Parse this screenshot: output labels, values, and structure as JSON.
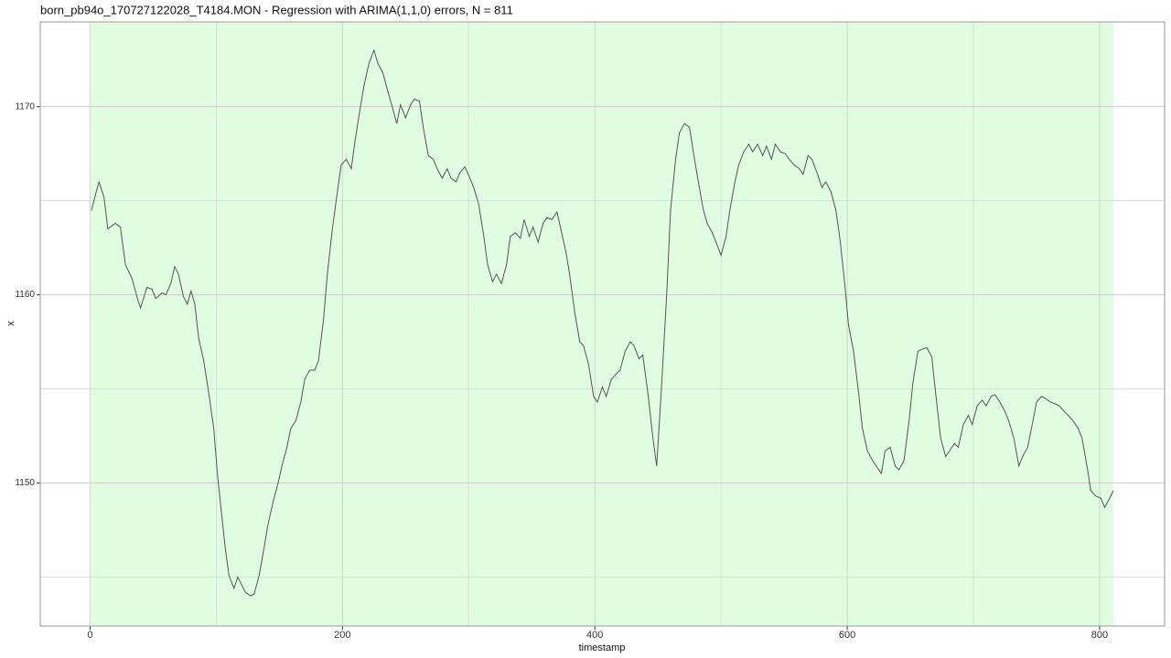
{
  "chart_data": {
    "type": "line",
    "title": "born_pb94o_170727122028_T4184.MON - Regression with ARIMA(1,1,0) errors, N = 811",
    "x_label": "timestamp",
    "y_label": "x",
    "xlim": [
      -39.5,
      851.5
    ],
    "ylim": [
      1142.4,
      1174.5
    ],
    "xticks": [
      0,
      200,
      400,
      600,
      800
    ],
    "yticks": [
      1150,
      1160,
      1170
    ],
    "x_minor_grid": [
      100,
      300,
      500,
      700
    ],
    "y_minor_grid": [
      1145,
      1155,
      1165
    ],
    "grid": true,
    "shaded_region": {
      "xmin": 1,
      "xmax": 811,
      "color": "#e1fde1"
    },
    "color": "#555555",
    "x": [
      1,
      7,
      11,
      14,
      20,
      24,
      28,
      33,
      38,
      40,
      45,
      49,
      52,
      57,
      60,
      64,
      67,
      70,
      74,
      77,
      80,
      83,
      86,
      90,
      94,
      98,
      101,
      104,
      107,
      110,
      114,
      117,
      120,
      123,
      127,
      130,
      134,
      138,
      141,
      145,
      149,
      152,
      156,
      159,
      163,
      167,
      170,
      174,
      178,
      181,
      185,
      188,
      192,
      196,
      199,
      203,
      207,
      210,
      214,
      217,
      221,
      225,
      228,
      232,
      236,
      239,
      243,
      246,
      250,
      254,
      257,
      261,
      264,
      268,
      272,
      275,
      279,
      283,
      286,
      290,
      293,
      297,
      301,
      304,
      308,
      312,
      315,
      319,
      322,
      326,
      330,
      333,
      337,
      341,
      344,
      348,
      351,
      355,
      359,
      362,
      366,
      370,
      373,
      377,
      380,
      384,
      388,
      391,
      395,
      399,
      402,
      406,
      409,
      413,
      417,
      420,
      424,
      428,
      431,
      435,
      438,
      442,
      446,
      449,
      453,
      457,
      460,
      464,
      467,
      471,
      475,
      478,
      482,
      486,
      489,
      493,
      496,
      500,
      504,
      507,
      511,
      514,
      518,
      522,
      525,
      529,
      533,
      536,
      540,
      543,
      547,
      551,
      554,
      558,
      562,
      565,
      569,
      572,
      576,
      580,
      583,
      587,
      591,
      594,
      598,
      601,
      605,
      609,
      612,
      616,
      620,
      623,
      627,
      630,
      634,
      638,
      641,
      645,
      649,
      652,
      656,
      659,
      663,
      667,
      670,
      674,
      678,
      681,
      685,
      688,
      692,
      696,
      699,
      703,
      707,
      710,
      714,
      717,
      721,
      725,
      728,
      732,
      736,
      739,
      743,
      746,
      750,
      754,
      757,
      761,
      765,
      768,
      772,
      775,
      779,
      783,
      786,
      790,
      793,
      797,
      801,
      804,
      808,
      811
    ],
    "values": [
      1164.47,
      1166.0,
      1165.2,
      1163.5,
      1163.8,
      1163.6,
      1161.6,
      1160.9,
      1159.7,
      1159.3,
      1160.4,
      1160.3,
      1159.8,
      1160.1,
      1160.0,
      1160.6,
      1161.5,
      1161.1,
      1159.9,
      1159.5,
      1160.2,
      1159.5,
      1157.7,
      1156.5,
      1154.8,
      1152.9,
      1150.4,
      1148.5,
      1146.6,
      1145.1,
      1144.4,
      1145.0,
      1144.6,
      1144.2,
      1144.0,
      1144.1,
      1145.1,
      1146.6,
      1147.8,
      1149.0,
      1150.0,
      1150.9,
      1151.9,
      1152.9,
      1153.3,
      1154.3,
      1155.5,
      1156.0,
      1156.0,
      1156.5,
      1158.7,
      1161.1,
      1163.5,
      1165.5,
      1166.9,
      1167.2,
      1166.7,
      1168.2,
      1169.9,
      1171.1,
      1172.3,
      1173.0,
      1172.3,
      1171.8,
      1170.8,
      1170.1,
      1169.1,
      1170.1,
      1169.4,
      1170.1,
      1170.4,
      1170.3,
      1168.9,
      1167.4,
      1167.2,
      1166.7,
      1166.2,
      1166.7,
      1166.2,
      1166.0,
      1166.5,
      1166.8,
      1166.2,
      1165.7,
      1164.8,
      1163.1,
      1161.6,
      1160.7,
      1161.1,
      1160.6,
      1161.6,
      1163.1,
      1163.3,
      1163.0,
      1164.0,
      1163.1,
      1163.6,
      1162.8,
      1163.8,
      1164.1,
      1164.0,
      1164.4,
      1163.5,
      1162.3,
      1161.1,
      1159.1,
      1157.5,
      1157.3,
      1156.3,
      1154.6,
      1154.3,
      1155.1,
      1154.6,
      1155.5,
      1155.8,
      1156.0,
      1157.0,
      1157.5,
      1157.3,
      1156.6,
      1156.8,
      1154.8,
      1152.4,
      1150.9,
      1155.3,
      1160.1,
      1164.5,
      1167.2,
      1168.6,
      1169.1,
      1168.9,
      1167.6,
      1166.0,
      1164.5,
      1163.8,
      1163.3,
      1162.8,
      1162.1,
      1163.1,
      1164.5,
      1166.0,
      1166.9,
      1167.6,
      1168.0,
      1167.6,
      1168.0,
      1167.4,
      1167.9,
      1167.2,
      1168.0,
      1167.6,
      1167.5,
      1167.2,
      1166.9,
      1166.7,
      1166.4,
      1167.4,
      1167.2,
      1166.5,
      1165.7,
      1166.0,
      1165.5,
      1164.5,
      1163.1,
      1160.6,
      1158.4,
      1157.0,
      1154.8,
      1152.9,
      1151.7,
      1151.2,
      1150.9,
      1150.5,
      1151.7,
      1151.9,
      1150.9,
      1150.7,
      1151.2,
      1153.3,
      1155.3,
      1157.0,
      1157.1,
      1157.2,
      1156.7,
      1154.8,
      1152.4,
      1151.4,
      1151.7,
      1152.1,
      1151.9,
      1153.1,
      1153.6,
      1153.1,
      1154.1,
      1154.4,
      1154.1,
      1154.6,
      1154.7,
      1154.3,
      1153.8,
      1153.3,
      1152.4,
      1150.9,
      1151.4,
      1151.9,
      1152.9,
      1154.3,
      1154.6,
      1154.5,
      1154.3,
      1154.2,
      1154.1,
      1153.8,
      1153.6,
      1153.3,
      1152.9,
      1152.4,
      1150.9,
      1149.6,
      1149.3,
      1149.2,
      1148.7,
      1149.2,
      1149.6
    ]
  }
}
